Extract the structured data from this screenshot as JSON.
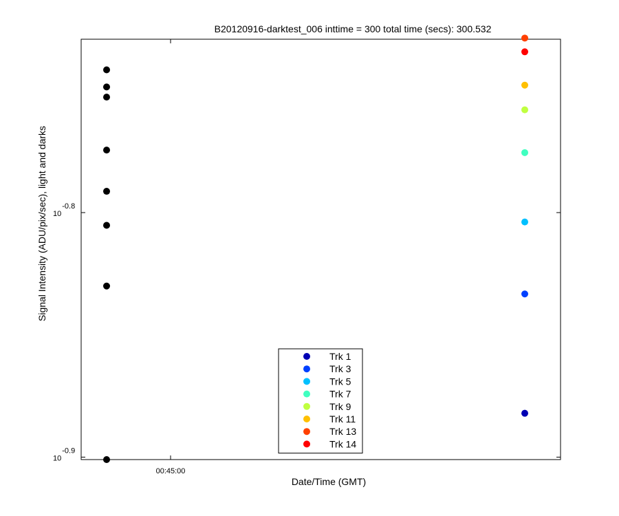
{
  "chart_data": {
    "type": "scatter",
    "title": "B20120916-darktest_006 inttime = 300 total time (secs): 300.532",
    "x_label": "Date/Time (GMT)",
    "y_label": "Signal Intensity (ADU/pix/sec), light and darks",
    "y_log": true,
    "grid": false,
    "legend_position": "bottom",
    "xlim": [
      2635,
      2983.5
    ],
    "xticks": [
      {
        "value": 2700,
        "label": "00:45:00"
      }
    ],
    "ylim": [
      0.1256,
      0.1866
    ],
    "yticks": [
      {
        "value": 0.12589,
        "label": "10^-0.9"
      },
      {
        "value": 0.15849,
        "label": "10^-0.8"
      }
    ],
    "series": [
      {
        "color": "#000000",
        "x": [
          2653.5,
          2653.5,
          2653.5,
          2653.5,
          2653.5,
          2653.5,
          2653.5,
          2653.5
        ],
        "values": [
          0.1813,
          0.1784,
          0.1767,
          0.1681,
          0.1617,
          0.1566,
          0.1479,
          0.1256
        ]
      },
      {
        "name": "Trk 1",
        "color": "#0000b4",
        "x": [
          2957.5
        ],
        "values": [
          0.1312
        ]
      },
      {
        "name": "Trk 3",
        "color": "#0040ff",
        "x": [
          2957.5
        ],
        "values": [
          0.1468
        ]
      },
      {
        "name": "Trk 5",
        "color": "#00c0ff",
        "x": [
          2957.5
        ],
        "values": [
          0.1571
        ]
      },
      {
        "name": "Trk 7",
        "color": "#40ffc0",
        "x": [
          2957.5
        ],
        "values": [
          0.1677
        ]
      },
      {
        "name": "Trk 9",
        "color": "#c0ff40",
        "x": [
          2957.5
        ],
        "values": [
          0.1746
        ]
      },
      {
        "name": "Trk 11",
        "color": "#ffc000",
        "x": [
          2957.5
        ],
        "values": [
          0.1787
        ]
      },
      {
        "name": "Trk 13",
        "color": "#ff4000",
        "x": [
          2957.5
        ],
        "values": [
          0.1868
        ]
      },
      {
        "name": "Trk 14",
        "color": "#ff0000",
        "x": [
          2957.5
        ],
        "values": [
          0.1844
        ]
      }
    ]
  }
}
